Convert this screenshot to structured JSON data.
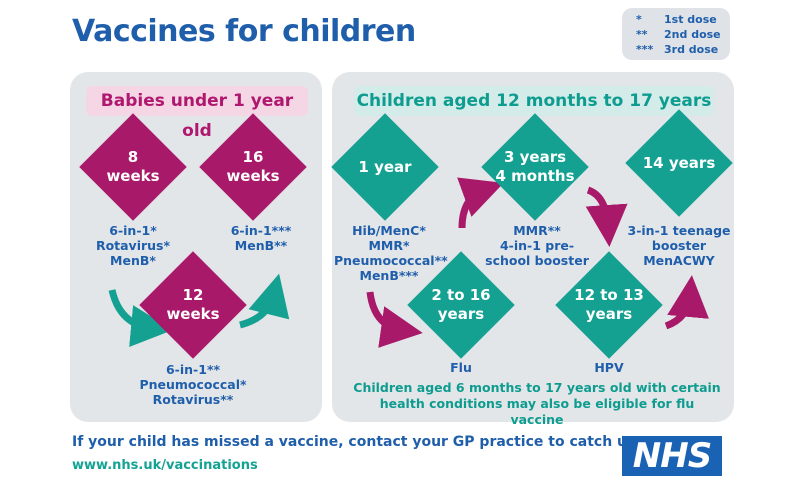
{
  "title": "Vaccines for children",
  "legend": [
    {
      "symbol": "*",
      "label": "1st dose"
    },
    {
      "symbol": "**",
      "label": "2nd dose"
    },
    {
      "symbol": "***",
      "label": "3rd dose"
    }
  ],
  "left_panel": {
    "heading": "Babies under 1 year old",
    "d8": {
      "line1": "8",
      "line2": "weeks"
    },
    "d16": {
      "line1": "16",
      "line2": "weeks"
    },
    "d12": {
      "line1": "12",
      "line2": "weeks"
    },
    "t8": [
      "6-in-1*",
      "Rotavirus*",
      "MenB*"
    ],
    "t16": [
      "6-in-1***",
      "MenB**"
    ],
    "t12": [
      "6-in-1**",
      "Pneumococcal*",
      "Rotavirus**"
    ]
  },
  "right_panel": {
    "heading": "Children aged 12 months to 17 years",
    "d1y": "1 year",
    "d3y": {
      "line1": "3 years",
      "line2": "4 months"
    },
    "d14": "14 years",
    "d216": {
      "line1": "2 to 16",
      "line2": "years"
    },
    "d1213": {
      "line1": "12 to 13",
      "line2": "years"
    },
    "t1y": [
      "Hib/MenC*",
      "MMR*",
      "Pneumococcal**",
      "MenB***"
    ],
    "t3y": [
      "MMR**",
      "4-in-1 pre-",
      "school booster"
    ],
    "t14": [
      "3-in-1 teenage",
      "booster",
      "MenACWY"
    ],
    "t216": "Flu",
    "t1213": "HPV",
    "note": [
      "Children aged 6 months to 17 years old with certain",
      "health conditions may also be eligible for flu vaccine"
    ]
  },
  "footer": {
    "line1": "If your child has missed a vaccine, contact your GP practice to catch up",
    "url": "www.nhs.uk/vaccinations",
    "logo": "NHS"
  },
  "colors": {
    "blue": "#1f5eab",
    "magenta": "#a8196a",
    "teal": "#14a192",
    "panel": "#e3e6e8"
  }
}
